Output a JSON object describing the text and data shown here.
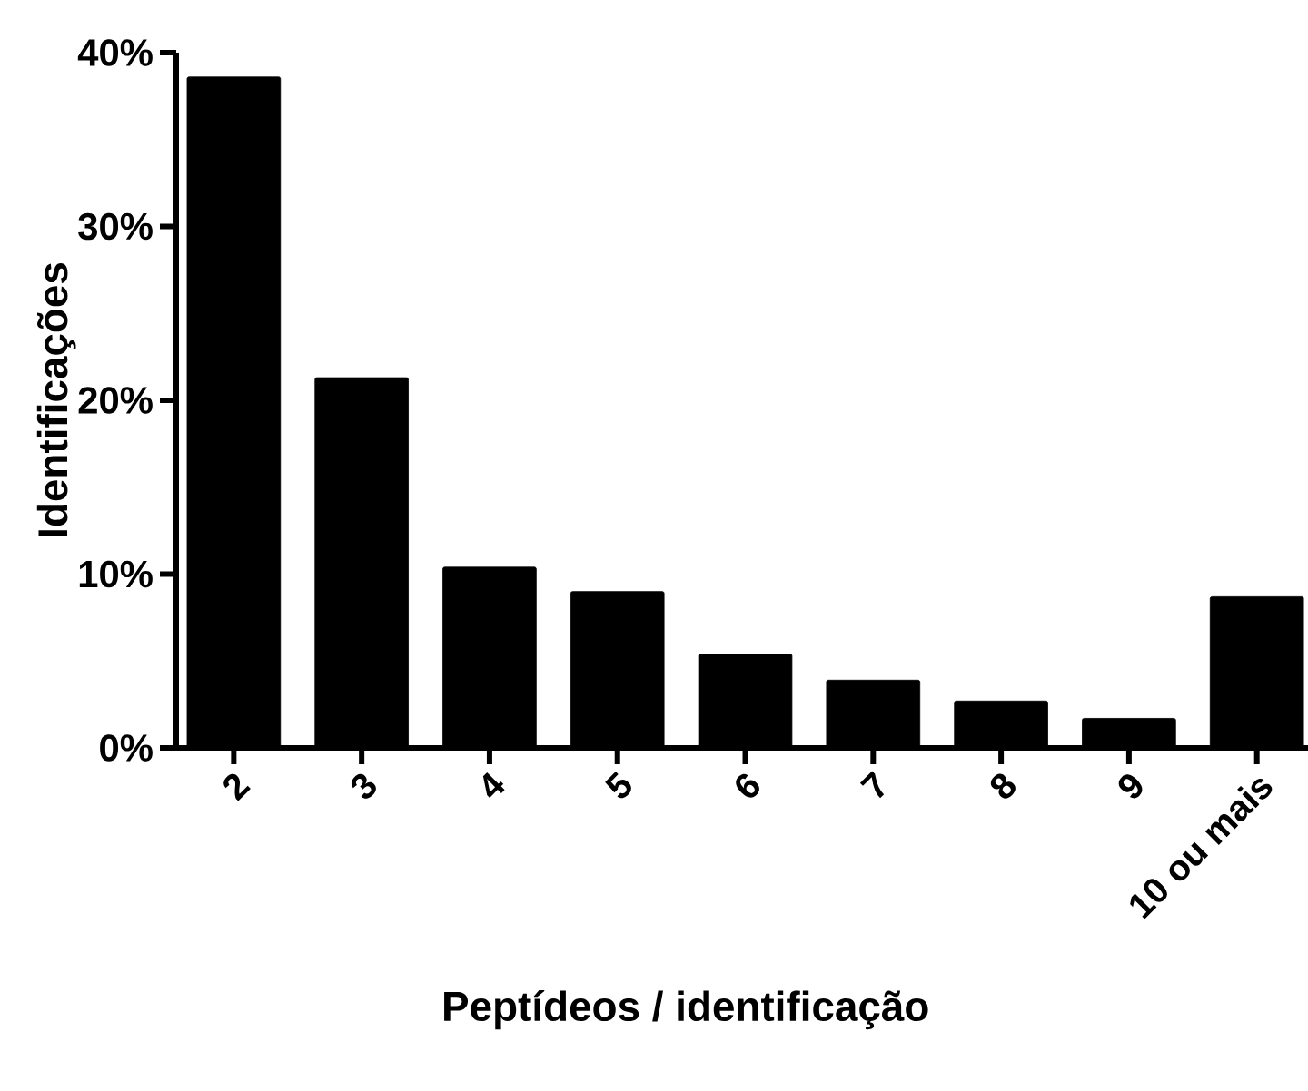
{
  "chart_data": {
    "type": "bar",
    "xlabel": "Peptídeos / identificação",
    "ylabel": "Identificações",
    "categories": [
      "2",
      "3",
      "4",
      "5",
      "6",
      "7",
      "8",
      "9",
      "10 ou mais"
    ],
    "values": [
      38.6,
      21.3,
      10.4,
      9.0,
      5.4,
      3.9,
      2.7,
      1.7,
      8.7
    ],
    "color": "#000000",
    "ylim": [
      0,
      40
    ],
    "yticks": [
      {
        "value": 0,
        "label": "0%"
      },
      {
        "value": 10,
        "label": "10%"
      },
      {
        "value": 20,
        "label": "20%"
      },
      {
        "value": 30,
        "label": "30%"
      },
      {
        "value": 40,
        "label": "40%"
      }
    ]
  }
}
